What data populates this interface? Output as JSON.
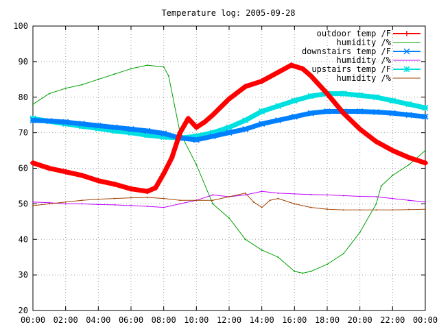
{
  "chart_data": {
    "type": "line",
    "title": "Temperature log: 2005-09-28",
    "xlabel": "",
    "ylabel": "",
    "x_range": [
      0,
      24
    ],
    "ylim": [
      20,
      100
    ],
    "grid": true,
    "legend_position": "top-right",
    "x_ticks": [
      "00:00",
      "02:00",
      "04:00",
      "06:00",
      "08:00",
      "10:00",
      "12:00",
      "14:00",
      "16:00",
      "18:00",
      "20:00",
      "22:00",
      "00:00"
    ],
    "y_ticks": [
      "20",
      "30",
      "40",
      "50",
      "60",
      "70",
      "80",
      "90",
      "100"
    ],
    "series": [
      {
        "name": "outdoor temp /F",
        "color": "#ff0000",
        "marker": "plus",
        "x": [
          0,
          1,
          2,
          3,
          4,
          5,
          6,
          7,
          7.5,
          8.0,
          8.5,
          9.0,
          9.5,
          10.0,
          10.5,
          11,
          12,
          13,
          14,
          15,
          15.8,
          16.5,
          17,
          18,
          19,
          20,
          21,
          22,
          23,
          24
        ],
        "y": [
          61.5,
          60,
          59,
          58,
          56.5,
          55.5,
          54.2,
          53.5,
          54.5,
          58.5,
          63,
          70,
          74,
          71.5,
          73,
          75,
          79.5,
          83,
          84.5,
          87,
          89,
          88,
          86,
          81,
          75.5,
          71,
          67.5,
          65,
          63,
          61.5
        ]
      },
      {
        "name": "humidity /%",
        "color": "#00a000",
        "marker": "",
        "x": [
          0,
          1,
          2,
          3,
          4,
          5,
          6,
          7,
          8.0,
          8.3,
          9,
          10,
          11,
          12,
          13,
          14,
          15,
          16,
          16.5,
          17,
          18,
          19,
          20,
          21,
          21.3,
          22,
          23,
          24
        ],
        "y": [
          78,
          81,
          82.5,
          83.5,
          85,
          86.5,
          88,
          89,
          88.5,
          86,
          70,
          61,
          50,
          46,
          40,
          37,
          35,
          31,
          30.5,
          31,
          33,
          36,
          42,
          50,
          55,
          58,
          61,
          65
        ]
      },
      {
        "name": "downstairs temp /F",
        "color": "#0080ff",
        "marker": "x",
        "x": [
          0,
          1,
          2,
          3,
          4,
          5,
          6,
          7,
          8,
          9,
          10,
          11,
          12,
          13,
          14,
          15,
          16,
          17,
          18,
          19,
          20,
          21,
          22,
          23,
          24
        ],
        "y": [
          73.5,
          73.3,
          73,
          72.5,
          72,
          71.5,
          71,
          70.5,
          69.8,
          68.5,
          68,
          69,
          70,
          71,
          72.5,
          73.5,
          74.5,
          75.5,
          76,
          76,
          76,
          75.8,
          75.5,
          75,
          74.5
        ]
      },
      {
        "name": "humidity /%",
        "color": "#c000ff",
        "marker": "",
        "x": [
          0,
          1,
          2,
          3,
          4,
          5,
          6,
          7,
          8,
          9,
          10,
          11,
          12,
          13,
          14,
          15,
          16,
          17,
          18,
          19,
          20,
          21,
          22,
          23,
          24
        ],
        "y": [
          50.5,
          50.3,
          50,
          50,
          49.8,
          49.7,
          49.5,
          49.3,
          49,
          50,
          51,
          52.5,
          52,
          52.5,
          53.5,
          53,
          52.8,
          52.6,
          52.5,
          52.3,
          52.1,
          52,
          51.5,
          51,
          50.5
        ]
      },
      {
        "name": "upstairs temp /F",
        "color": "#00e0e0",
        "marker": "star",
        "x": [
          0,
          1,
          2,
          3,
          4,
          5,
          6,
          7,
          8,
          9,
          10,
          11,
          12,
          13,
          14,
          15,
          16,
          17,
          18,
          19,
          20,
          21,
          22,
          23,
          24
        ],
        "y": [
          74,
          73.2,
          72.5,
          71.8,
          71.2,
          70.5,
          70,
          69.3,
          68.8,
          68.5,
          69,
          70,
          71.5,
          73.5,
          76,
          77.5,
          79,
          80.3,
          81,
          81,
          80.5,
          80,
          79,
          78,
          77
        ]
      },
      {
        "name": "humidity /%",
        "color": "#a04000",
        "marker": "",
        "x": [
          0,
          1,
          2,
          3,
          4,
          5,
          6,
          7,
          8,
          9,
          10,
          11,
          12,
          13,
          13.5,
          14,
          14.5,
          15,
          16,
          17,
          18,
          19,
          20,
          21,
          22,
          23,
          24
        ],
        "y": [
          49.5,
          50,
          50.5,
          51,
          51.3,
          51.5,
          51.7,
          51.8,
          51.5,
          51,
          51,
          51,
          52,
          53,
          50.5,
          49,
          51,
          51.5,
          50,
          49,
          48.5,
          48.3,
          48.3,
          48.3,
          48.3,
          48.4,
          48.5
        ]
      }
    ]
  }
}
